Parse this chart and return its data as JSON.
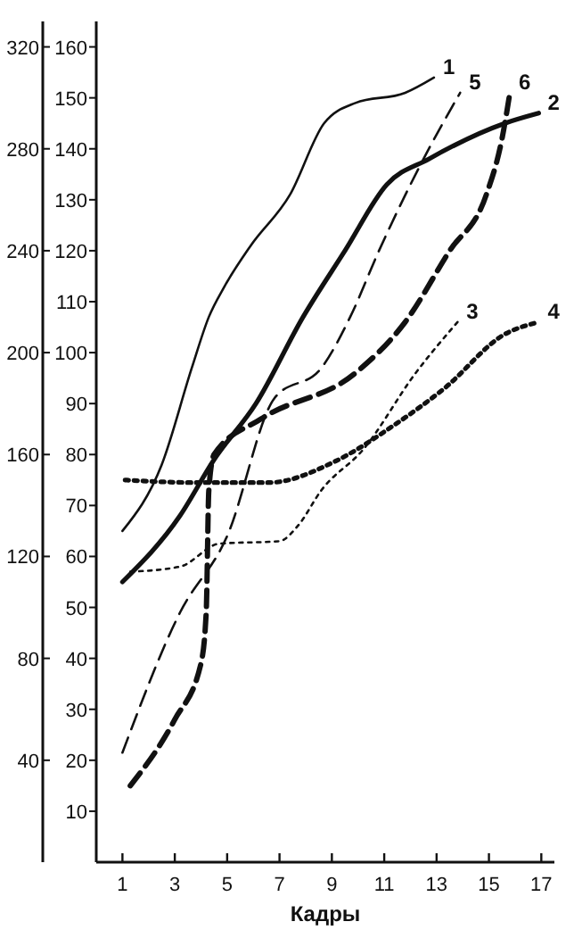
{
  "chart_data": {
    "type": "line",
    "xlabel": "Кадры",
    "xlim": [
      0,
      17.5
    ],
    "xticks": [
      1,
      3,
      5,
      7,
      9,
      11,
      13,
      15,
      17
    ],
    "ylim": [
      0,
      165
    ],
    "yticks": [
      10,
      20,
      30,
      40,
      50,
      60,
      70,
      80,
      90,
      100,
      110,
      120,
      130,
      140,
      150,
      160
    ],
    "y2lim": [
      0,
      330
    ],
    "y2ticks": [
      40,
      80,
      120,
      160,
      200,
      240,
      280,
      320
    ],
    "legend": false,
    "grid": false,
    "marker": "none",
    "series": [
      {
        "name": "1",
        "color": "#111111",
        "line_style": "solid",
        "x": [
          1,
          2.5,
          3.65,
          4.3,
          4.9,
          5.9,
          7.4,
          8.7,
          9.9,
          11.8,
          12.9
        ],
        "values": [
          65,
          78,
          97,
          107,
          113,
          121,
          131,
          145,
          149,
          151,
          154
        ]
      },
      {
        "name": "2",
        "color": "#111111",
        "line_style": "solid",
        "x": [
          1,
          3.2,
          4.5,
          6.1,
          7.9,
          9.5,
          11.1,
          12.7,
          15.6,
          16.9
        ],
        "values": [
          55,
          68,
          79,
          90,
          107,
          120,
          133,
          138,
          145,
          147
        ]
      },
      {
        "name": "3",
        "color": "#111111",
        "line_style": "dotted",
        "x": [
          1.3,
          3.2,
          4.7,
          7,
          7.7,
          8.6,
          10.2,
          12.2,
          13.8
        ],
        "values": [
          57,
          58,
          62.5,
          63,
          66,
          73,
          81,
          96,
          106
        ]
      },
      {
        "name": "4",
        "color": "#111111",
        "line_style": "dotted",
        "x": [
          1.1,
          3.8,
          6.6,
          9.1,
          11.3,
          13.3,
          15.6,
          16.9
        ],
        "values": [
          75,
          74.5,
          74.5,
          78.6,
          85.5,
          93,
          103.6,
          106
        ]
      },
      {
        "name": "5",
        "color": "#111111",
        "line_style": "dashed",
        "x": [
          1,
          3.2,
          5,
          6.8,
          8.6,
          9.7,
          10.8,
          12.5,
          13.9
        ],
        "values": [
          21.5,
          49,
          64,
          91,
          97,
          107,
          120,
          138,
          151
        ]
      },
      {
        "name": "6",
        "color": "#111111",
        "line_style": "dashed",
        "x": [
          1.3,
          3,
          4,
          4.2,
          4.3,
          4.5,
          6.3,
          9.9,
          11.8,
          13.5,
          14.9,
          15.5,
          15.8
        ],
        "values": [
          15,
          28,
          39,
          49,
          73,
          80,
          87,
          96,
          106,
          120,
          131,
          142,
          151
        ]
      }
    ]
  }
}
